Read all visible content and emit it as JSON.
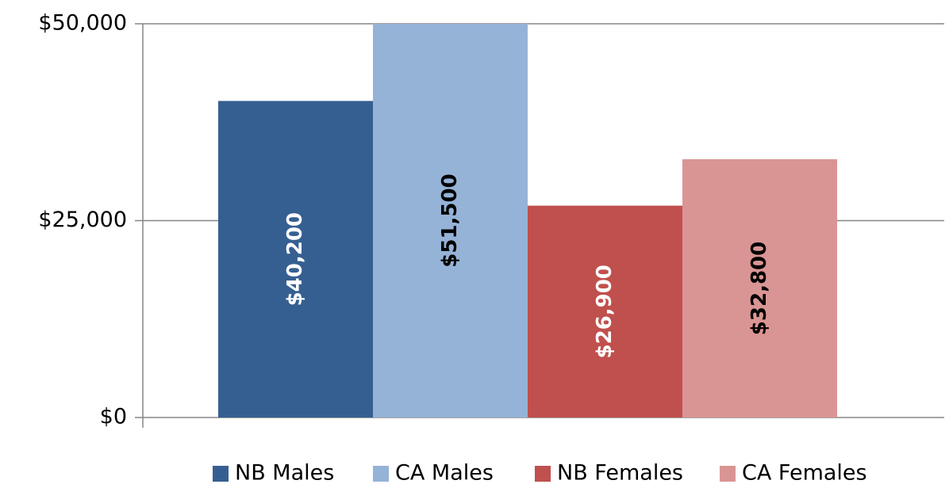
{
  "chart_data": {
    "type": "bar",
    "series": [
      {
        "name": "NB Males",
        "color": "#365f91",
        "values": [
          40200
        ],
        "value_labels": [
          "$40,200"
        ]
      },
      {
        "name": "CA Males",
        "color": "#95b3d7",
        "values": [
          51500
        ],
        "value_labels": [
          "$51,500"
        ]
      },
      {
        "name": "NB Females",
        "color": "#c0504d",
        "values": [
          26900
        ],
        "value_labels": [
          "$26,900"
        ]
      },
      {
        "name": "CA Females",
        "color": "#d99594",
        "values": [
          32800
        ],
        "value_labels": [
          "$32,800"
        ]
      }
    ],
    "ylim": [
      0,
      50000
    ],
    "yticks": [
      {
        "value": 0,
        "label": "$0"
      },
      {
        "value": 25000,
        "label": "$25,000"
      },
      {
        "value": 50000,
        "label": "$50,000"
      }
    ],
    "grid": true,
    "legend": "bottom"
  }
}
